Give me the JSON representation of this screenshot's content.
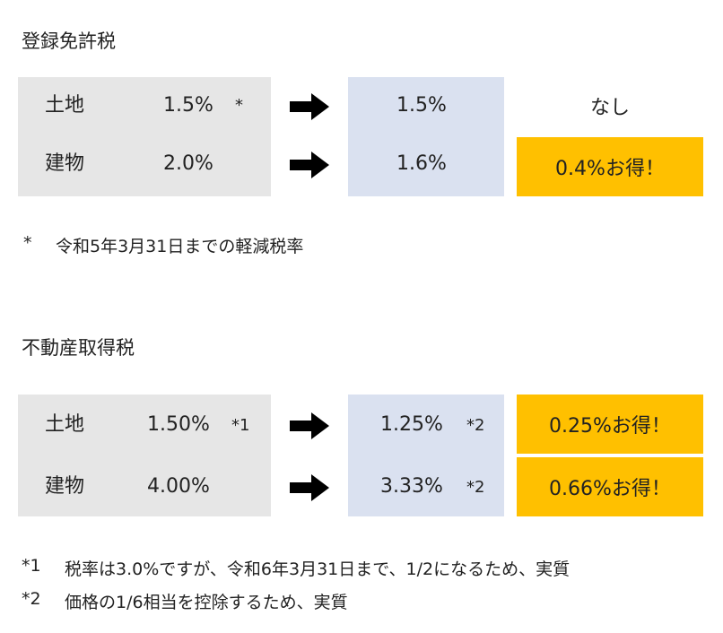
{
  "section1": {
    "title": "登録免許税",
    "rows": [
      {
        "label": "土地",
        "current": "1.5%",
        "current_mark": "*",
        "new": "1.5%",
        "new_mark": "",
        "saving": "なし"
      },
      {
        "label": "建物",
        "current": "2.0%",
        "current_mark": "",
        "new": "1.6%",
        "new_mark": "",
        "saving": "0.4%お得！"
      }
    ],
    "notes": [
      {
        "mark": "*",
        "text": "令和5年3月31日までの軽減税率"
      }
    ]
  },
  "section2": {
    "title": "不動産取得税",
    "rows": [
      {
        "label": "土地",
        "current": "1.50%",
        "current_mark": "*1",
        "new": "1.25%",
        "new_mark": "*2",
        "saving": "0.25%お得！"
      },
      {
        "label": "建物",
        "current": "4.00%",
        "current_mark": "",
        "new": "3.33%",
        "new_mark": "*2",
        "saving": "0.66%お得！"
      }
    ],
    "notes": [
      {
        "mark": "*1",
        "text": "税率は3.0%ですが、令和6年3月31日まで、1/2になるため、実質"
      },
      {
        "mark": "*2",
        "text": "価格の1/6相当を控除するため、実質"
      }
    ]
  },
  "colors": {
    "current_bg": "#e6e6e6",
    "new_bg": "#dae1f0",
    "saving_bg": "#ffc000",
    "arrow": "#000000"
  },
  "icons": {
    "arrow": "right-arrow-icon"
  }
}
